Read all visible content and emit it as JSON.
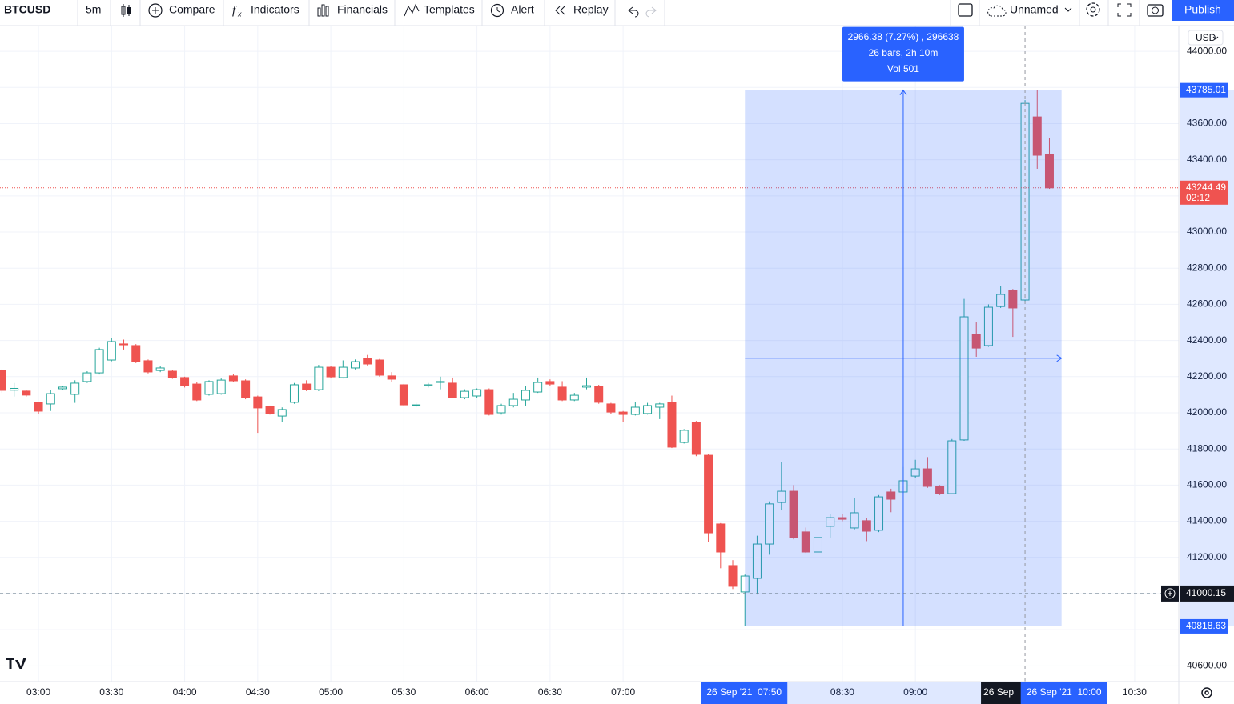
{
  "toolbar": {
    "symbol": "BTCUSD",
    "interval": "5m",
    "buttons": [
      "Compare",
      "Indicators",
      "Financials",
      "Templates",
      "Alert",
      "Replay"
    ],
    "layout_name": "Unnamed",
    "publish": "Publish"
  },
  "chart_data": {
    "type": "candlestick",
    "currency": "USD",
    "up_color": "#26a69a",
    "down_color": "#ef5350",
    "open": [
      42234,
      42125,
      42120,
      42058,
      42049,
      42133,
      42102,
      42173,
      42221,
      42292,
      42381,
      42372,
      42288,
      42234,
      42230,
      42195,
      42159,
      42102,
      42106,
      42204,
      42177,
      42088,
      42035,
      41982,
      42058,
      42159,
      42128,
      42252,
      42195,
      42248,
      42301,
      42292,
      42204,
      42155,
      42040,
      42150,
      42168,
      42164,
      42084,
      42093,
      42128,
      42000,
      42040,
      42071,
      42115,
      42173,
      42142,
      42071,
      42142,
      42146,
      42049,
      42004,
      41991,
      41996,
      42031,
      42058,
      41836,
      41947,
      41765,
      41385,
      41155,
      41009,
      41084,
      41274,
      41504,
      41566,
      41341,
      41230,
      41372,
      41420,
      41363,
      41403,
      41350,
      41562,
      41562,
      41650,
      41690,
      41593,
      41553,
      41850,
      42434,
      42372,
      42588,
      42677,
      42624,
      43637,
      43429
    ],
    "high": [
      42240,
      42165,
      42125,
      42062,
      42128,
      42150,
      42180,
      42230,
      42360,
      42415,
      42405,
      42380,
      42295,
      42260,
      42235,
      42200,
      42170,
      42180,
      42190,
      42215,
      42185,
      42095,
      42040,
      42030,
      42165,
      42180,
      42265,
      42258,
      42290,
      42295,
      42320,
      42298,
      42225,
      42160,
      42055,
      42165,
      42200,
      42195,
      42130,
      42135,
      42135,
      42050,
      42110,
      42150,
      42195,
      42185,
      42175,
      42110,
      42195,
      42155,
      42055,
      42010,
      42060,
      42055,
      42055,
      42095,
      41910,
      41955,
      41770,
      41390,
      41185,
      41105,
      41320,
      41510,
      41730,
      41600,
      41365,
      41350,
      41440,
      41440,
      41530,
      41420,
      41545,
      41580,
      41700,
      41740,
      41755,
      41600,
      41855,
      42630,
      42500,
      42600,
      42700,
      42685,
      43730,
      43785.01,
      43520
    ],
    "low": [
      42110,
      42090,
      42090,
      41995,
      42010,
      42125,
      42055,
      42165,
      42212,
      42285,
      42350,
      42275,
      42218,
      42225,
      42188,
      42140,
      42065,
      42095,
      42100,
      42170,
      42075,
      41889,
      41990,
      41950,
      42050,
      42120,
      42120,
      42190,
      42190,
      42240,
      42262,
      42200,
      42170,
      42040,
      42030,
      42140,
      42130,
      42080,
      42075,
      42080,
      41985,
      41990,
      42030,
      42040,
      42110,
      42150,
      42065,
      42065,
      42130,
      42050,
      41995,
      41950,
      41985,
      41990,
      41965,
      41805,
      41830,
      41760,
      41285,
      41140,
      41025,
      40818.63,
      40995,
      41215,
      41460,
      41300,
      41225,
      41110,
      41310,
      41400,
      41355,
      41290,
      41340,
      41450,
      41555,
      41640,
      41585,
      41545,
      41550,
      41845,
      42310,
      42365,
      42580,
      42420,
      42610,
      43350,
      43239
    ],
    "close": [
      42124,
      42135,
      42098,
      42009,
      42106,
      42142,
      42164,
      42221,
      42350,
      42394,
      42376,
      42283,
      42226,
      42248,
      42195,
      42150,
      42071,
      42173,
      42181,
      42177,
      42084,
      42027,
      41996,
      42018,
      42155,
      42128,
      42252,
      42199,
      42252,
      42283,
      42270,
      42208,
      42186,
      42044,
      42044,
      42155,
      42173,
      42084,
      42119,
      42128,
      41991,
      42040,
      42075,
      42124,
      42168,
      42159,
      42071,
      42097,
      42150,
      42058,
      42004,
      41991,
      42031,
      42040,
      42049,
      41810,
      41903,
      41770,
      41336,
      41230,
      41040,
      41097,
      41274,
      41496,
      41566,
      41310,
      41230,
      41310,
      41420,
      41411,
      41447,
      41345,
      41535,
      41522,
      41624,
      41690,
      41593,
      41553,
      41845,
      42531,
      42358,
      42584,
      42655,
      42580,
      43712,
      43425,
      43244.49
    ],
    "xlim": [
      -0.16,
      96.62
    ],
    "xticks": [
      {
        "value": 3,
        "label": "03:00"
      },
      {
        "value": 9,
        "label": "03:30"
      },
      {
        "value": 15,
        "label": "04:00"
      },
      {
        "value": 21,
        "label": "04:30"
      },
      {
        "value": 27,
        "label": "05:00"
      },
      {
        "value": 33,
        "label": "05:30"
      },
      {
        "value": 39,
        "label": "06:00"
      },
      {
        "value": 45,
        "label": "06:30"
      },
      {
        "value": 51,
        "label": "07:00"
      },
      {
        "value": 69,
        "label": "08:30"
      },
      {
        "value": 75,
        "label": "09:00"
      },
      {
        "value": 93,
        "label": "10:30"
      }
    ],
    "ylim": [
      40513,
      44142
    ],
    "yticks": [
      {
        "value": 40600,
        "label": "40600.00"
      },
      {
        "value": 40800,
        "label": "40800.00"
      },
      {
        "value": 41000,
        "label": "41000.00"
      },
      {
        "value": 41200,
        "label": "41200.00"
      },
      {
        "value": 41400,
        "label": "41400.00"
      },
      {
        "value": 41600,
        "label": "41600.00"
      },
      {
        "value": 41800,
        "label": "41800.00"
      },
      {
        "value": 42000,
        "label": "42000.00"
      },
      {
        "value": 42200,
        "label": "42200.00"
      },
      {
        "value": 42400,
        "label": "42400.00"
      },
      {
        "value": 42600,
        "label": "42600.00"
      },
      {
        "value": 42800,
        "label": "42800.00"
      },
      {
        "value": 43000,
        "label": "43000.00"
      },
      {
        "value": 43200,
        "label": "43200.00"
      },
      {
        "value": 43400,
        "label": "43400.00"
      },
      {
        "value": 43600,
        "label": "43600.00"
      },
      {
        "value": 43800,
        "label": "43800.00"
      },
      {
        "value": 44000,
        "label": "44000.00"
      }
    ],
    "grid": true,
    "last_price": 43244.49,
    "countdown": "02:12",
    "measure": {
      "start": 61,
      "end": 87,
      "low": 40818.63,
      "high": 43785.01,
      "start_label": "26 Sep '21  07:50",
      "end_label": "26 Sep '21  10:00",
      "lines": [
        "2966.38 (7.27%) , 296638",
        "26 bars, 2h 10m",
        "Vol 501"
      ]
    },
    "crosshair": {
      "x": 84,
      "price": 41000.15,
      "time_label": "26 Sep"
    }
  }
}
